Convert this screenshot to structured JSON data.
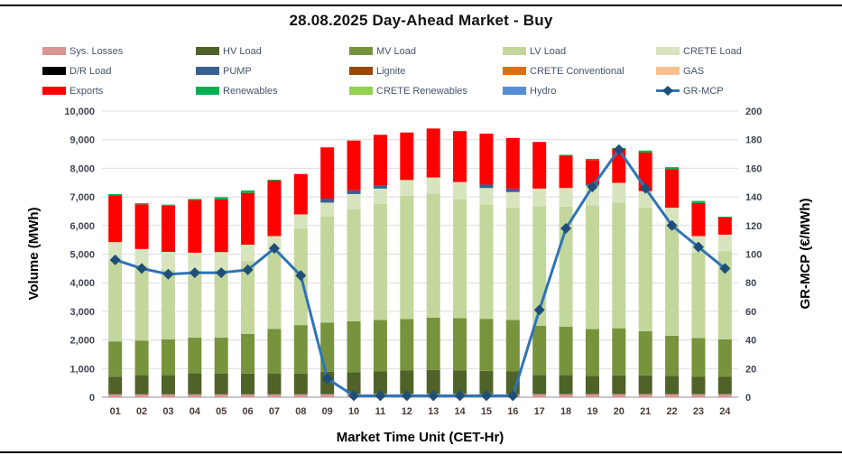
{
  "title": "28.08.2025  Day-Ahead Market - Buy",
  "legend": {
    "items": [
      {
        "label": "Sys. Losses",
        "color": "#D99694",
        "type": "box"
      },
      {
        "label": "HV Load",
        "color": "#4F6228",
        "type": "box"
      },
      {
        "label": "MV Load",
        "color": "#77933C",
        "type": "box"
      },
      {
        "label": "LV Load",
        "color": "#C3D69B",
        "type": "box"
      },
      {
        "label": "CRETE Load",
        "color": "#D7E4BD",
        "type": "box"
      },
      {
        "label": "D/R Load",
        "color": "#000000",
        "type": "box"
      },
      {
        "label": "PUMP",
        "color": "#376092",
        "type": "box"
      },
      {
        "label": "Lignite",
        "color": "#974706",
        "type": "box"
      },
      {
        "label": "CRETE Conventional",
        "color": "#E46C0A",
        "type": "box"
      },
      {
        "label": "GAS",
        "color": "#FAC090",
        "type": "box"
      },
      {
        "label": "Exports",
        "color": "#FF0000",
        "type": "box"
      },
      {
        "label": "Renewables",
        "color": "#00B050",
        "type": "box"
      },
      {
        "label": "CRETE Renewables",
        "color": "#92D050",
        "type": "box"
      },
      {
        "label": "Hydro",
        "color": "#558ED5",
        "type": "box"
      },
      {
        "label": "GR-MCP",
        "color": "#1F4E79",
        "type": "line",
        "line_color": "#2E74B5"
      }
    ]
  },
  "chart_data": {
    "type": "bar",
    "subtype": "stacked-bars-with-line-overlay",
    "title": "28.08.2025  Day-Ahead Market - Buy",
    "xlabel": "Market Time Unit (CET-Hr)",
    "ylabel_left": "Volume (MWh)",
    "ylabel_right": "GR-MCP (€/MWh)",
    "ylim_left": [
      0,
      10000
    ],
    "ytick_step_left": 1000,
    "ylim_right": [
      0,
      200
    ],
    "ytick_step_right": 20,
    "grid": true,
    "legend_position": "top",
    "categories": [
      "01",
      "02",
      "03",
      "04",
      "05",
      "06",
      "07",
      "08",
      "09",
      "10",
      "11",
      "12",
      "13",
      "14",
      "15",
      "16",
      "17",
      "18",
      "19",
      "20",
      "21",
      "22",
      "23",
      "24"
    ],
    "series": [
      {
        "name": "Sys. Losses",
        "color": "#D99694",
        "values": [
          100,
          100,
          100,
          100,
          100,
          100,
          100,
          100,
          110,
          120,
          120,
          120,
          120,
          120,
          110,
          110,
          110,
          110,
          110,
          110,
          110,
          110,
          110,
          110
        ]
      },
      {
        "name": "HV Load",
        "color": "#4F6228",
        "values": [
          620,
          670,
          670,
          740,
          720,
          730,
          720,
          730,
          780,
          750,
          780,
          810,
          830,
          820,
          810,
          790,
          670,
          670,
          630,
          650,
          650,
          630,
          600,
          600
        ]
      },
      {
        "name": "MV Load",
        "color": "#77933C",
        "values": [
          1230,
          1210,
          1250,
          1240,
          1260,
          1380,
          1570,
          1690,
          1720,
          1780,
          1800,
          1800,
          1830,
          1820,
          1820,
          1800,
          1720,
          1680,
          1640,
          1650,
          1550,
          1410,
          1360,
          1310
        ]
      },
      {
        "name": "LV Load",
        "color": "#C3D69B",
        "values": [
          2840,
          2590,
          2450,
          2360,
          2390,
          2550,
          2660,
          3370,
          3700,
          3920,
          4050,
          4310,
          4340,
          4160,
          3990,
          3920,
          4180,
          4200,
          4330,
          4390,
          4310,
          3900,
          2990,
          3080
        ]
      },
      {
        "name": "CRETE Load",
        "color": "#D7E4BD",
        "values": [
          630,
          610,
          610,
          610,
          600,
          570,
          580,
          500,
          490,
          530,
          540,
          550,
          560,
          600,
          580,
          550,
          610,
          650,
          680,
          690,
          580,
          570,
          570,
          580
        ]
      },
      {
        "name": "PUMP",
        "color": "#376092",
        "values": [
          0,
          0,
          0,
          0,
          0,
          0,
          0,
          0,
          140,
          130,
          120,
          0,
          0,
          0,
          120,
          120,
          0,
          0,
          50,
          0,
          0,
          0,
          0,
          0
        ]
      },
      {
        "name": "Exports",
        "color": "#FF0000",
        "values": [
          1640,
          1560,
          1610,
          1840,
          1840,
          1810,
          1940,
          1410,
          1790,
          1740,
          1760,
          1660,
          1710,
          1780,
          1780,
          1770,
          1630,
          1130,
          850,
          1200,
          1350,
          1350,
          1160,
          600
        ]
      },
      {
        "name": "Renewables",
        "color": "#00B050",
        "values": [
          40,
          40,
          40,
          40,
          80,
          85,
          30,
          0,
          0,
          0,
          0,
          0,
          0,
          0,
          0,
          0,
          0,
          30,
          40,
          20,
          70,
          70,
          70,
          30
        ]
      }
    ],
    "zero_series": [
      "D/R Load",
      "Lignite",
      "CRETE Conventional",
      "GAS",
      "Hydro",
      "CRETE Renewables"
    ],
    "line": {
      "name": "GR-MCP",
      "axis": "right",
      "color": "#2E74B5",
      "marker_color": "#1F4E79",
      "values": [
        96,
        90,
        86,
        87,
        87,
        89,
        104,
        85,
        13,
        1,
        1,
        1,
        1,
        1,
        1,
        1,
        61,
        118,
        147,
        173,
        146,
        120,
        105,
        90
      ]
    }
  },
  "axes": {
    "x_title": "Market Time Unit (CET-Hr)",
    "left_title": "Volume (MWh)",
    "right_title": "GR-MCP (€/MWh)"
  },
  "colors": {
    "grid": "#DCDCDC",
    "baseline": "#A6A6A6",
    "tick_left": "#3F4450",
    "tick_right": "#3F4450",
    "tick_x": "#4A3B39",
    "legend_text": "#44546A",
    "title_text": "#111111"
  }
}
